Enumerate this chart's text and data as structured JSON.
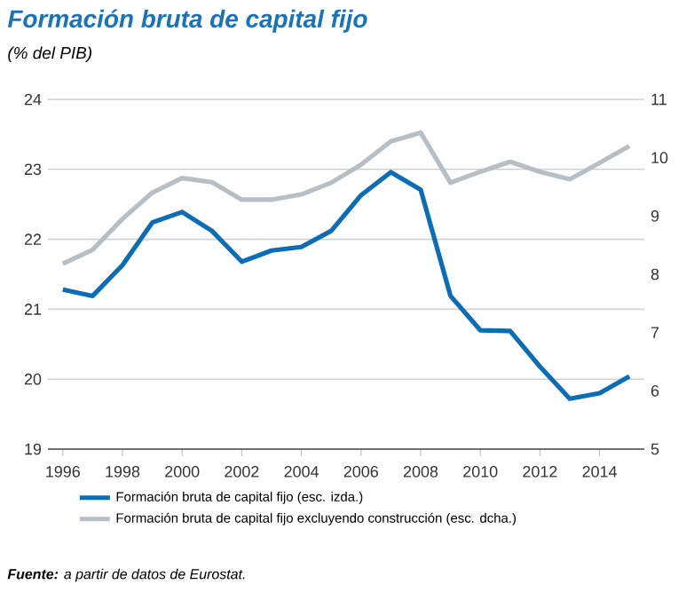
{
  "chart_data": {
    "type": "line",
    "title": "Formación bruta de capital fijo",
    "subtitle": "(% del PIB)",
    "annotations": [
      "**Fuente:** a partir de datos de Eurostat."
    ],
    "x": [
      1996,
      1997,
      1998,
      1999,
      2000,
      2001,
      2002,
      2003,
      2004,
      2005,
      2006,
      2007,
      2008,
      2009,
      2010,
      2011,
      2012,
      2013,
      2014,
      2015
    ],
    "xlim": [
      1995.5,
      2015.5
    ],
    "xticks": [
      1996,
      1998,
      2000,
      2002,
      2004,
      2006,
      2008,
      2010,
      2012,
      2014
    ],
    "ylim": [
      19,
      24
    ],
    "yticks": [
      19,
      20,
      21,
      22,
      23,
      24
    ],
    "y2lim": [
      5,
      11
    ],
    "y2ticks": [
      5,
      6,
      7,
      8,
      9,
      10,
      11
    ],
    "series": [
      {
        "name": "Formación bruta de capital fijo (esc. izda.)",
        "color": "#0a6db5",
        "values": [
          21.28,
          21.19,
          21.63,
          22.24,
          22.39,
          22.12,
          21.68,
          21.84,
          21.89,
          22.12,
          22.63,
          22.96,
          22.71,
          21.19,
          20.7,
          20.69,
          20.18,
          19.72,
          19.8,
          20.04
        ]
      },
      {
        "name": "Formación bruta de capital fijo excluyendo construcción (esc. dcha.)",
        "color": "#b7bec4",
        "axis": "y2",
        "values": [
          8.18,
          8.42,
          8.95,
          9.4,
          9.65,
          9.58,
          9.28,
          9.28,
          9.37,
          9.57,
          9.88,
          10.28,
          10.43,
          9.57,
          9.76,
          9.93,
          9.76,
          9.63,
          9.91,
          10.2
        ]
      }
    ],
    "grid": "y",
    "legend": "bottom"
  }
}
